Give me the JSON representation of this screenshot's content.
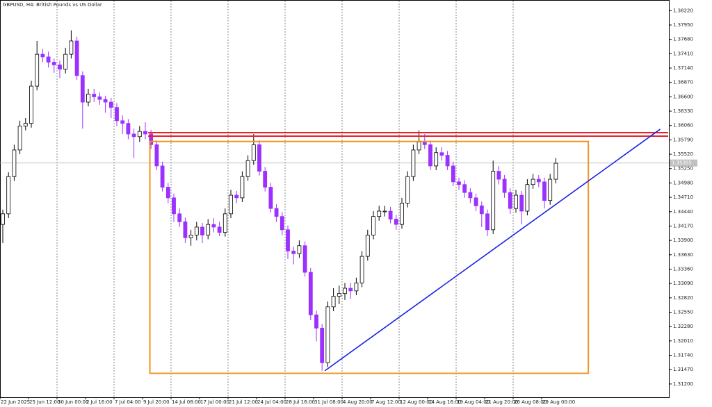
{
  "chart_data": {
    "type": "candlestick",
    "title": "GBPUSD, H4:  British Pounds vs US Dollar",
    "categories": [
      "22 Jun 2025",
      null,
      null,
      null,
      null,
      "25 Jun 12:00",
      null,
      null,
      null,
      null,
      "30 Jun 00:00",
      null,
      null,
      null,
      null,
      "2 Jul 16:00",
      null,
      null,
      null,
      null,
      "7 Jul 04:00",
      null,
      null,
      null,
      null,
      "9 Jul 20:00",
      null,
      null,
      null,
      null,
      "14 Jul 08:00",
      null,
      null,
      null,
      null,
      "17 Jul 00:00",
      null,
      null,
      null,
      null,
      "21 Jul 12:00",
      null,
      null,
      null,
      null,
      "24 Jul 04:00",
      null,
      null,
      null,
      null,
      "28 Jul 16:00",
      null,
      null,
      null,
      null,
      "31 Jul 08:00",
      null,
      null,
      null,
      null,
      "4 Aug 20:00",
      null,
      null,
      null,
      null,
      "7 Aug 12:00",
      null,
      null,
      null,
      null,
      "12 Aug 00:00",
      null,
      null,
      null,
      null,
      "14 Aug 16:00",
      null,
      null,
      null,
      null,
      "19 Aug 04:00",
      null,
      null,
      null,
      null,
      "21 Aug 20:00",
      null,
      null,
      null,
      null,
      "26 Aug 08:00",
      null,
      null,
      null,
      null,
      "29 Aug 00:00",
      null,
      null
    ],
    "open": [
      1.342,
      1.344,
      1.351,
      1.356,
      1.3605,
      1.361,
      1.368,
      1.374,
      1.3735,
      1.3725,
      1.372,
      1.3712,
      1.374,
      1.3765,
      1.37,
      1.365,
      1.3665,
      1.366,
      1.3655,
      1.365,
      1.364,
      1.3615,
      1.361,
      1.359,
      1.3585,
      1.3595,
      1.359,
      1.357,
      1.353,
      1.349,
      1.347,
      1.344,
      1.3425,
      1.3395,
      1.34,
      1.3415,
      1.34,
      1.342,
      1.3415,
      1.3405,
      1.344,
      1.3475,
      1.347,
      1.351,
      1.354,
      1.357,
      1.352,
      1.349,
      1.345,
      1.3435,
      1.341,
      1.337,
      1.3365,
      1.338,
      1.333,
      1.325,
      1.3225,
      1.316,
      1.3265,
      1.3285,
      1.329,
      1.33,
      1.3295,
      1.331,
      1.336,
      1.34,
      1.3435,
      1.3445,
      1.3445,
      1.343,
      1.342,
      1.346,
      1.351,
      1.356,
      1.3575,
      1.357,
      1.353,
      1.3555,
      1.355,
      1.353,
      1.35,
      1.3495,
      1.348,
      1.347,
      1.3455,
      1.344,
      1.341,
      1.352,
      1.3505,
      1.348,
      1.345,
      1.3475,
      1.3445,
      1.3495,
      1.3505,
      1.35,
      1.3465,
      1.3505
    ],
    "high": [
      1.3448,
      1.3518,
      1.357,
      1.3615,
      1.362,
      1.369,
      1.3765,
      1.375,
      1.3745,
      1.3732,
      1.3728,
      1.3752,
      1.3785,
      1.3773,
      1.3708,
      1.3675,
      1.3675,
      1.3668,
      1.3662,
      1.3658,
      1.3648,
      1.3625,
      1.3618,
      1.36,
      1.3605,
      1.3612,
      1.3598,
      1.3578,
      1.3538,
      1.3498,
      1.3478,
      1.345,
      1.3433,
      1.341,
      1.3425,
      1.3423,
      1.343,
      1.3432,
      1.3425,
      1.345,
      1.3485,
      1.3483,
      1.352,
      1.355,
      1.359,
      1.3578,
      1.3528,
      1.3498,
      1.3458,
      1.3443,
      1.3418,
      1.3378,
      1.339,
      1.3388,
      1.3338,
      1.3258,
      1.3233,
      1.3275,
      1.33,
      1.3305,
      1.331,
      1.331,
      1.332,
      1.337,
      1.341,
      1.3445,
      1.3455,
      1.3455,
      1.3453,
      1.3438,
      1.347,
      1.352,
      1.357,
      1.3597,
      1.359,
      1.3578,
      1.3565,
      1.3565,
      1.3558,
      1.3538,
      1.3508,
      1.3503,
      1.3488,
      1.3478,
      1.3463,
      1.3448,
      1.354,
      1.353,
      1.3513,
      1.3488,
      1.3485,
      1.3483,
      1.3505,
      1.3515,
      1.3513,
      1.3508,
      1.3515,
      1.3545
    ],
    "low": [
      1.3385,
      1.3432,
      1.3502,
      1.3552,
      1.3597,
      1.3602,
      1.3672,
      1.3725,
      1.3715,
      1.3705,
      1.3695,
      1.3704,
      1.3732,
      1.3692,
      1.36,
      1.3642,
      1.365,
      1.3645,
      1.363,
      1.362,
      1.3605,
      1.359,
      1.358,
      1.3545,
      1.3575,
      1.358,
      1.3562,
      1.3522,
      1.3482,
      1.346,
      1.3425,
      1.3415,
      1.3385,
      1.338,
      1.339,
      1.3385,
      1.3392,
      1.3405,
      1.3398,
      1.3397,
      1.3432,
      1.346,
      1.3462,
      1.3502,
      1.3532,
      1.3512,
      1.3482,
      1.3442,
      1.3425,
      1.34,
      1.3355,
      1.3345,
      1.3357,
      1.3322,
      1.324,
      1.32,
      1.3145,
      1.3152,
      1.3257,
      1.327,
      1.3278,
      1.328,
      1.3287,
      1.3302,
      1.3352,
      1.3392,
      1.3427,
      1.3435,
      1.3422,
      1.341,
      1.3412,
      1.3452,
      1.3502,
      1.3552,
      1.3562,
      1.3522,
      1.3522,
      1.354,
      1.3522,
      1.3492,
      1.3485,
      1.347,
      1.346,
      1.3445,
      1.3415,
      1.3398,
      1.3402,
      1.3495,
      1.347,
      1.344,
      1.3442,
      1.342,
      1.3437,
      1.3487,
      1.349,
      1.345,
      1.3457,
      1.3497
    ],
    "close": [
      1.344,
      1.351,
      1.356,
      1.3605,
      1.361,
      1.368,
      1.374,
      1.3735,
      1.3725,
      1.372,
      1.3712,
      1.374,
      1.3765,
      1.37,
      1.365,
      1.3665,
      1.366,
      1.3655,
      1.365,
      1.364,
      1.3615,
      1.361,
      1.359,
      1.3585,
      1.3595,
      1.359,
      1.357,
      1.353,
      1.349,
      1.347,
      1.344,
      1.3425,
      1.3395,
      1.34,
      1.3415,
      1.34,
      1.342,
      1.3415,
      1.3405,
      1.344,
      1.3475,
      1.347,
      1.351,
      1.354,
      1.357,
      1.352,
      1.349,
      1.345,
      1.3435,
      1.341,
      1.337,
      1.3365,
      1.338,
      1.333,
      1.325,
      1.3225,
      1.316,
      1.3265,
      1.3285,
      1.329,
      1.33,
      1.3295,
      1.331,
      1.336,
      1.34,
      1.3435,
      1.3445,
      1.3445,
      1.343,
      1.342,
      1.346,
      1.351,
      1.356,
      1.3575,
      1.357,
      1.353,
      1.3555,
      1.355,
      1.353,
      1.35,
      1.3495,
      1.348,
      1.347,
      1.3455,
      1.344,
      1.341,
      1.352,
      1.3505,
      1.348,
      1.345,
      1.3475,
      1.3445,
      1.3495,
      1.3505,
      1.35,
      1.3465,
      1.3505,
      1.3535
    ],
    "up_color": "#000000",
    "down_color": "#9b30ff",
    "ylim": [
      1.3095,
      1.3842
    ],
    "yticks": [
      {
        "value": 1.3822,
        "label": "1.38220"
      },
      {
        "value": 1.3795,
        "label": "1.37950"
      },
      {
        "value": 1.3768,
        "label": "1.37680"
      },
      {
        "value": 1.3741,
        "label": "1.37410"
      },
      {
        "value": 1.3714,
        "label": "1.37140"
      },
      {
        "value": 1.3687,
        "label": "1.36870"
      },
      {
        "value": 1.366,
        "label": "1.36600"
      },
      {
        "value": 1.3633,
        "label": "1.36330"
      },
      {
        "value": 1.3606,
        "label": "1.36060"
      },
      {
        "value": 1.3579,
        "label": "1.35790"
      },
      {
        "value": 1.3552,
        "label": "1.35520"
      },
      {
        "value": 1.3525,
        "label": "1.35250"
      },
      {
        "value": 1.3498,
        "label": "1.34980"
      },
      {
        "value": 1.3471,
        "label": "1.34710"
      },
      {
        "value": 1.3444,
        "label": "1.34440"
      },
      {
        "value": 1.3417,
        "label": "1.34170"
      },
      {
        "value": 1.339,
        "label": "1.33900"
      },
      {
        "value": 1.3363,
        "label": "1.33630"
      },
      {
        "value": 1.3336,
        "label": "1.33360"
      },
      {
        "value": 1.3309,
        "label": "1.33090"
      },
      {
        "value": 1.3282,
        "label": "1.32820"
      },
      {
        "value": 1.3255,
        "label": "1.32550"
      },
      {
        "value": 1.3228,
        "label": "1.32280"
      },
      {
        "value": 1.3201,
        "label": "1.32010"
      },
      {
        "value": 1.3174,
        "label": "1.31740"
      },
      {
        "value": 1.3147,
        "label": "1.31470"
      },
      {
        "value": 1.312,
        "label": "1.31200"
      }
    ],
    "last_price": {
      "value": 1.35355,
      "label": "1.35355"
    },
    "grid": true,
    "drawings": {
      "resistance_zone": {
        "color": "#e8202a",
        "start": 25.5,
        "top": 1.35925,
        "bottom": 1.3586
      },
      "range_box": {
        "color": "#f0961e",
        "x0": 25.8,
        "x1": 102.7,
        "top": 1.3576,
        "bottom": 1.314
      },
      "trendline": {
        "color": "#1a22e6",
        "x": [
          56.5,
          115.3
        ],
        "y": [
          1.3145,
          1.3599
        ]
      }
    }
  }
}
